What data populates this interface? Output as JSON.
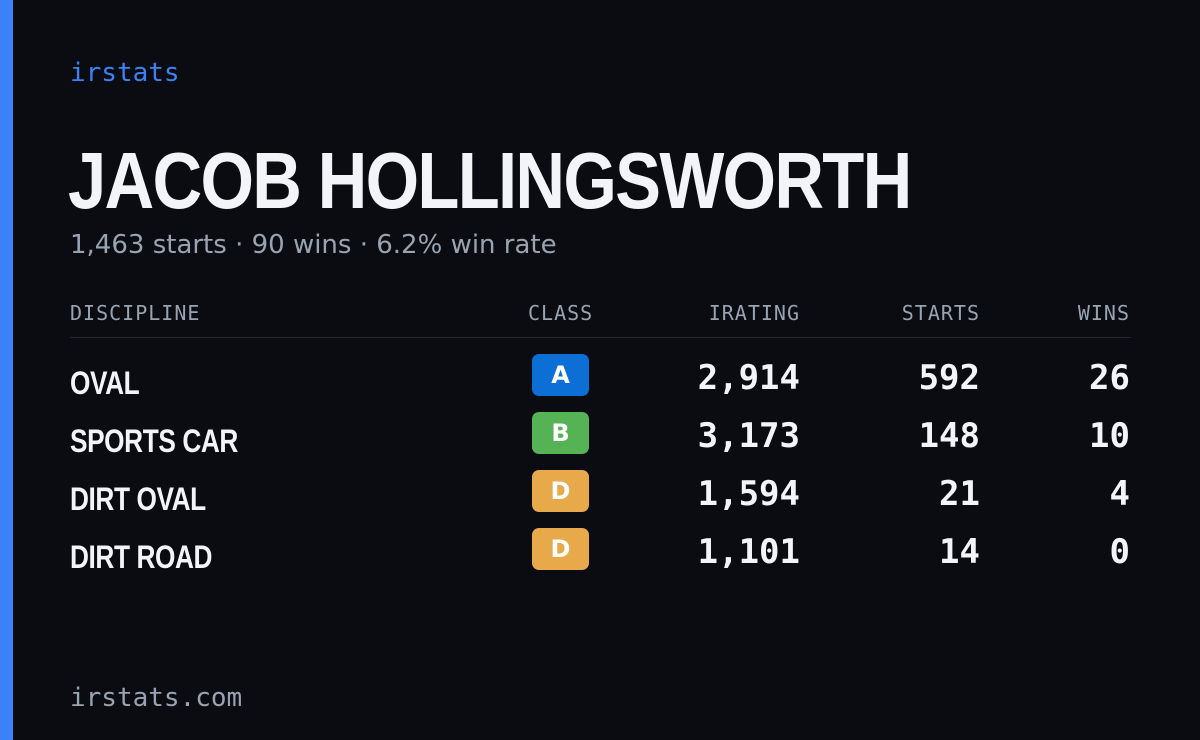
{
  "brand": "irstats",
  "driver": {
    "name": "JACOB HOLLINGSWORTH",
    "summary": "1,463 starts · 90 wins · 6.2% win rate"
  },
  "table": {
    "headers": {
      "discipline": "DISCIPLINE",
      "class": "CLASS",
      "irating": "IRATING",
      "starts": "STARTS",
      "wins": "WINS"
    },
    "rows": [
      {
        "discipline": "OVAL",
        "class": "A",
        "class_color": "#0b6fd6",
        "irating": "2,914",
        "starts": "592",
        "wins": "26"
      },
      {
        "discipline": "SPORTS CAR",
        "class": "B",
        "class_color": "#55b356",
        "irating": "3,173",
        "starts": "148",
        "wins": "10"
      },
      {
        "discipline": "DIRT OVAL",
        "class": "D",
        "class_color": "#e8a94a",
        "irating": "1,594",
        "starts": "21",
        "wins": "4"
      },
      {
        "discipline": "DIRT ROAD",
        "class": "D",
        "class_color": "#e8a94a",
        "irating": "1,101",
        "starts": "14",
        "wins": "0"
      }
    ]
  },
  "footer": "irstats.com",
  "colors": {
    "accent": "#3b82f6",
    "background": "#0a0c12",
    "text": "#f3f4f7",
    "muted": "#9aa3b2"
  }
}
